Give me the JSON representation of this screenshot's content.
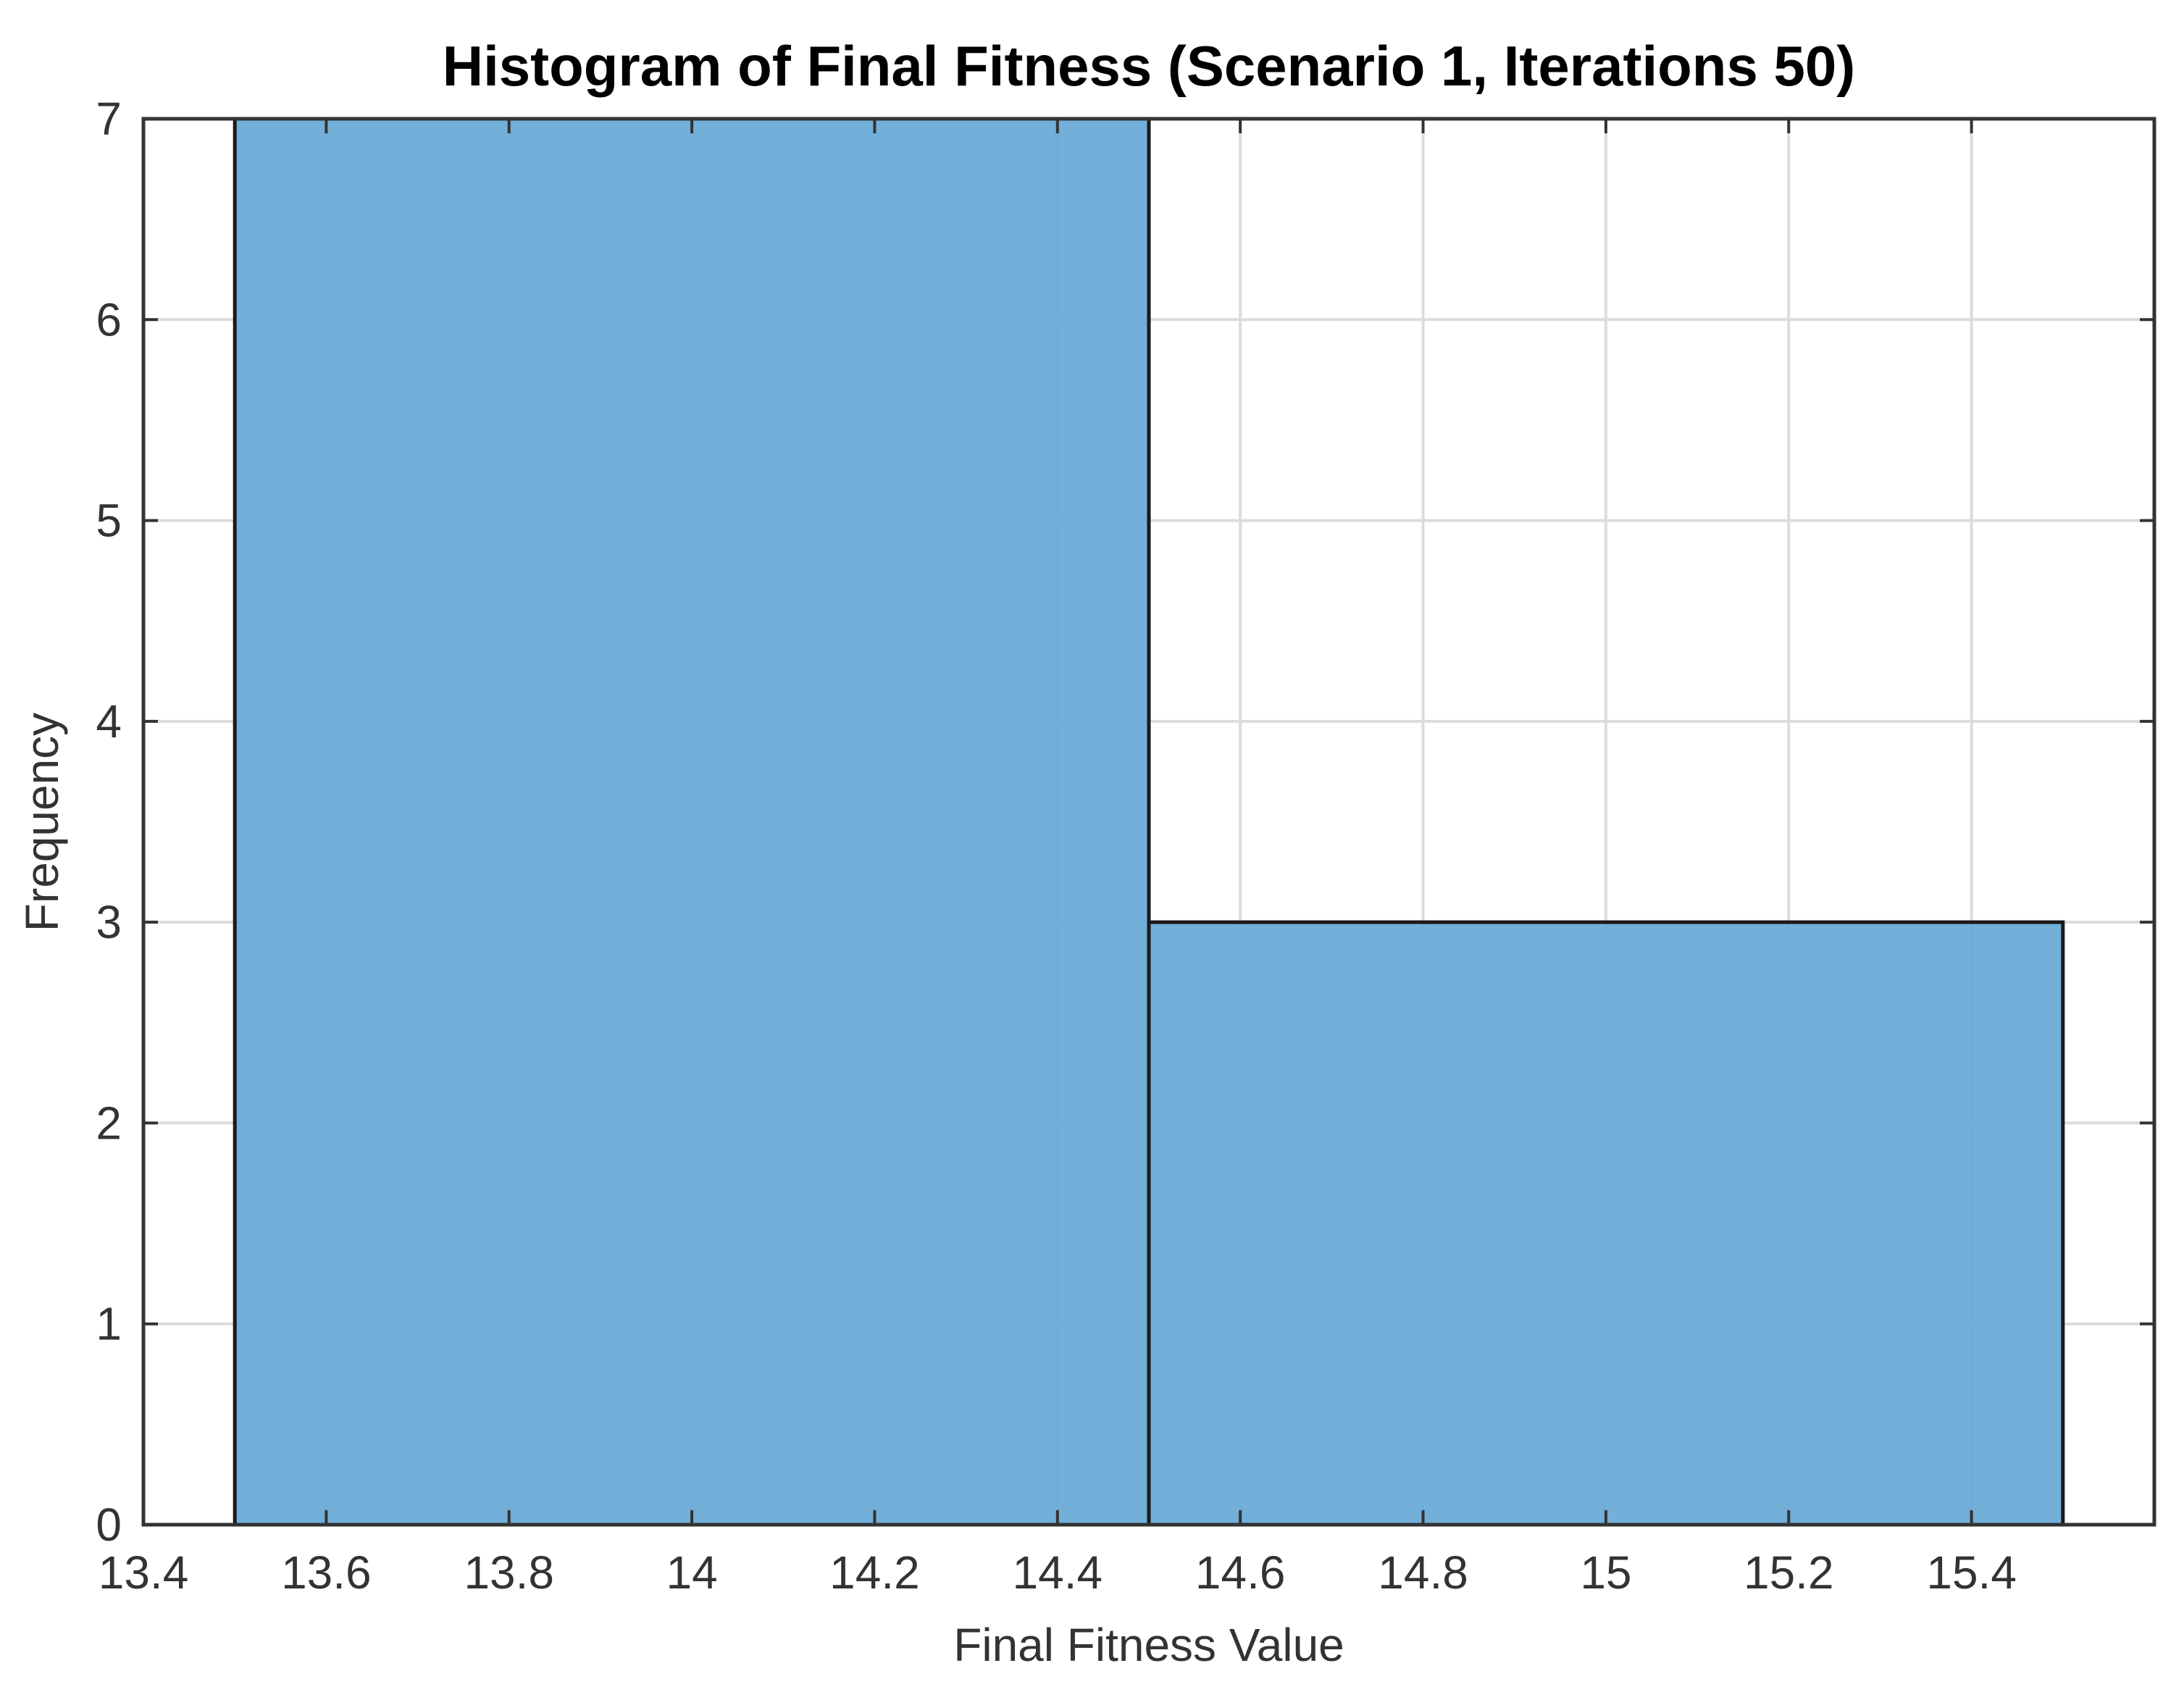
{
  "chart_data": {
    "type": "bar",
    "subtype": "histogram",
    "title": "Histogram of Final Fitness (Scenario 1, Iterations 50)",
    "xlabel": "Final Fitness Value",
    "ylabel": "Frequency",
    "xlim": [
      13.4,
      15.6
    ],
    "ylim": [
      0,
      7
    ],
    "xticks": [
      13.4,
      13.6,
      13.8,
      14,
      14.2,
      14.4,
      14.6,
      14.8,
      15,
      15.2,
      15.4
    ],
    "xtick_labels": [
      "13.4",
      "13.6",
      "13.8",
      "14",
      "14.2",
      "14.4",
      "14.6",
      "14.8",
      "15",
      "15.2",
      "15.4"
    ],
    "yticks": [
      0,
      1,
      2,
      3,
      4,
      5,
      6,
      7
    ],
    "ytick_labels": [
      "0",
      "1",
      "2",
      "3",
      "4",
      "5",
      "6",
      "7"
    ],
    "bins": [
      {
        "x_start": 13.5,
        "x_end": 14.5,
        "count": 7
      },
      {
        "x_start": 14.5,
        "x_end": 15.5,
        "count": 3
      }
    ],
    "grid": true,
    "colors": {
      "bar_fill": "#66a8d6",
      "bar_edge": "#1a1a1a",
      "grid": "#dcdcdc",
      "axis": "#333333"
    }
  }
}
